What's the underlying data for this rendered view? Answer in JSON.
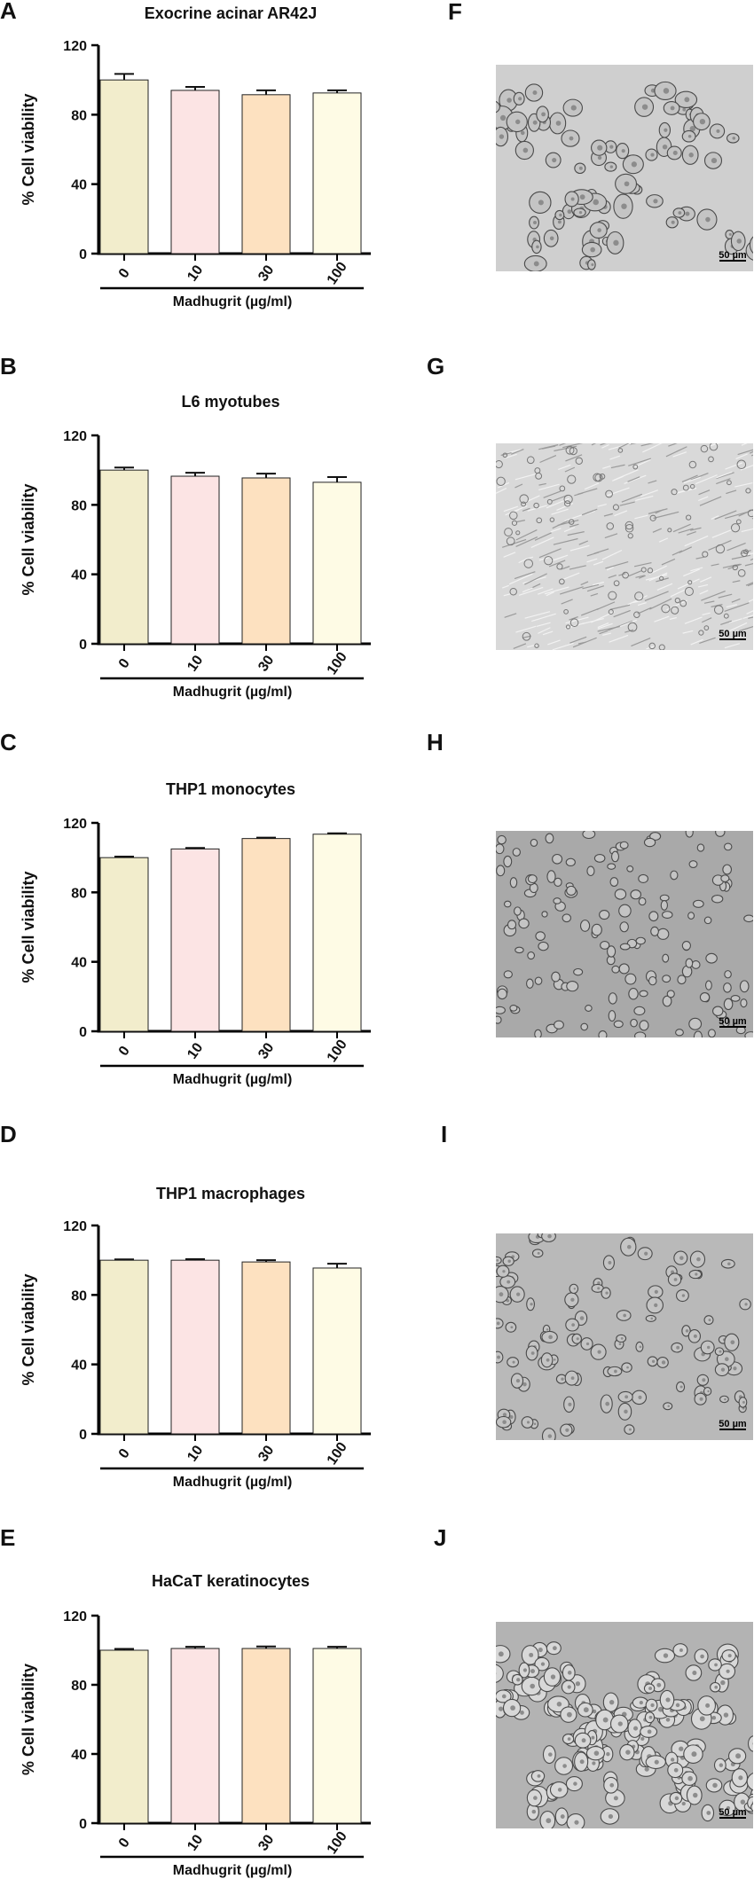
{
  "figure": {
    "xlabel": "Madhugrit (µg/ml)",
    "ylabel": "% Cell viability",
    "scale_bar_label": "50 µm",
    "micrograph_labels": [
      "F",
      "G",
      "H",
      "I",
      "J"
    ],
    "bar_colors": [
      "#f2edcc",
      "#fce4e4",
      "#fde1c0",
      "#fefbe5"
    ]
  },
  "chart_data": [
    {
      "panel": "A",
      "type": "bar",
      "title": "Exocrine acinar AR42J",
      "categories": [
        "0",
        "10",
        "30",
        "100"
      ],
      "values": [
        100,
        94,
        91.5,
        92.5
      ],
      "errors": [
        3.5,
        2,
        2.5,
        1.5
      ],
      "ylim": [
        0,
        120
      ],
      "yticks": [
        0,
        40,
        80,
        120
      ],
      "xlabel": "Madhugrit (µg/ml)",
      "ylabel": "% Cell viability"
    },
    {
      "panel": "B",
      "type": "bar",
      "title": "L6 myotubes",
      "categories": [
        "0",
        "10",
        "30",
        "100"
      ],
      "values": [
        100,
        96.5,
        95.5,
        93
      ],
      "errors": [
        1.5,
        2,
        2.5,
        3
      ],
      "ylim": [
        0,
        120
      ],
      "yticks": [
        0,
        40,
        80,
        120
      ],
      "xlabel": "Madhugrit (µg/ml)",
      "ylabel": "% Cell viability"
    },
    {
      "panel": "C",
      "type": "bar",
      "title": "THP1 monocytes",
      "categories": [
        "0",
        "10",
        "30",
        "100"
      ],
      "values": [
        100,
        105,
        111,
        113.5
      ],
      "errors": [
        0.6,
        0.6,
        0.5,
        0.5
      ],
      "ylim": [
        0,
        120
      ],
      "yticks": [
        0,
        40,
        80,
        120
      ],
      "xlabel": "Madhugrit (µg/ml)",
      "ylabel": "% Cell viability"
    },
    {
      "panel": "D",
      "type": "bar",
      "title": "THP1 macrophages",
      "categories": [
        "0",
        "10",
        "30",
        "100"
      ],
      "values": [
        100,
        100,
        99,
        95.5
      ],
      "errors": [
        0.5,
        0.6,
        1,
        2.5
      ],
      "ylim": [
        0,
        120
      ],
      "yticks": [
        0,
        40,
        80,
        120
      ],
      "xlabel": "Madhugrit (µg/ml)",
      "ylabel": "% Cell viability"
    },
    {
      "panel": "E",
      "type": "bar",
      "title": "HaCaT keratinocytes",
      "categories": [
        "0",
        "10",
        "30",
        "100"
      ],
      "values": [
        100,
        101,
        101,
        101
      ],
      "errors": [
        0.8,
        1,
        1.2,
        1
      ],
      "ylim": [
        0,
        120
      ],
      "yticks": [
        0,
        40,
        80,
        120
      ],
      "xlabel": "Madhugrit (µg/ml)",
      "ylabel": "% Cell viability"
    }
  ]
}
